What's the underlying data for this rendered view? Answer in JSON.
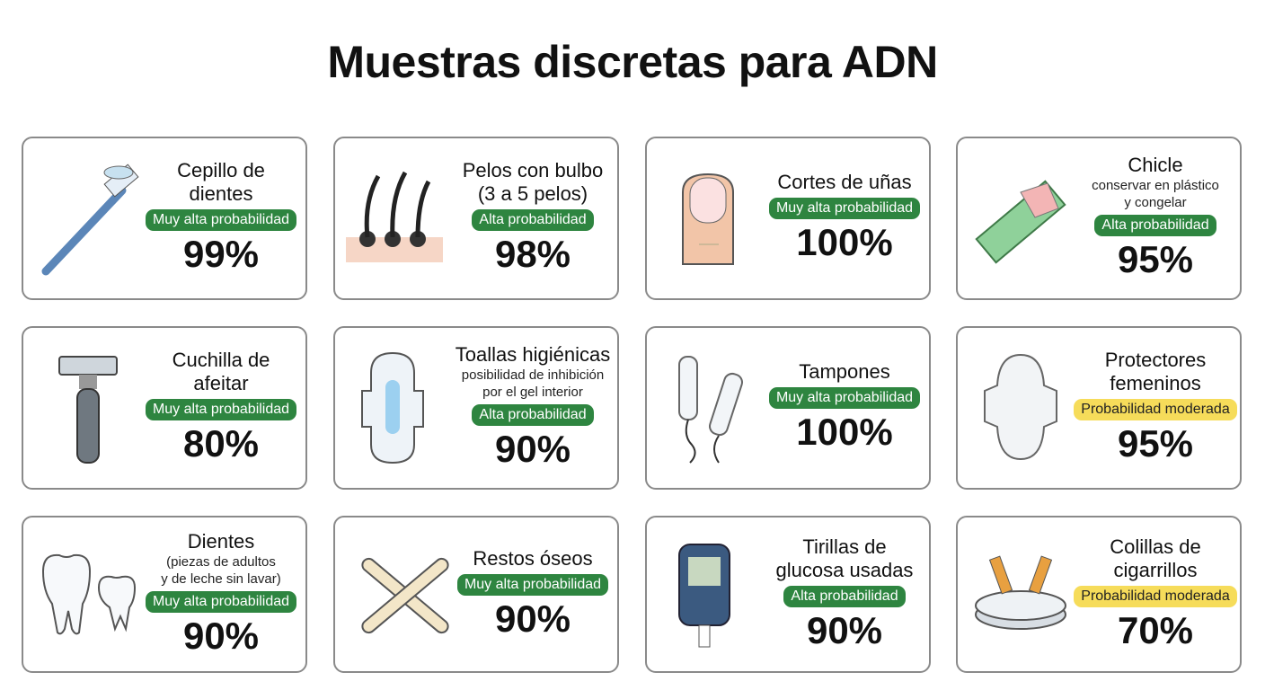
{
  "header": {
    "title": "Muestras discretas para ADN"
  },
  "cards": [
    {
      "title": "Cepillo de\ndientes",
      "badge": "Muy alta probabilidad",
      "badge_color": "#2e8540",
      "percent": "99%"
    },
    {
      "title": "Pelos con bulbo\n(3 a 5 pelos)",
      "badge": "Alta probabilidad",
      "badge_color": "#2e8540",
      "percent": "98%"
    },
    {
      "title": "Cortes de uñas",
      "badge": "Muy alta probabilidad",
      "badge_color": "#2e8540",
      "percent": "100%"
    },
    {
      "title": "Chicle",
      "note": "conservar en plástico\ny congelar",
      "badge": "Alta probabilidad",
      "badge_color": "#2e8540",
      "percent": "95%"
    },
    {
      "title": "Cuchilla de\nafeitar",
      "badge": "Muy alta probabilidad",
      "badge_color": "#2e8540",
      "percent": "80%"
    },
    {
      "title": "Toallas higiénicas",
      "note": "posibilidad de inhibición\npor el gel interior",
      "badge": "Alta probabilidad",
      "badge_color": "#2e8540",
      "percent": "90%"
    },
    {
      "title": "Tampones",
      "badge": "Muy alta probabilidad",
      "badge_color": "#2e8540",
      "percent": "100%"
    },
    {
      "title": "Protectores\nfemeninos",
      "badge": "Probabilidad moderada",
      "badge_color": "#f6dc5a",
      "percent": "95%"
    },
    {
      "title": "Dientes",
      "note": "(piezas de adultos\ny de leche sin lavar)",
      "badge": "Muy alta probabilidad",
      "badge_color": "#2e8540",
      "percent": "90%"
    },
    {
      "title": "Restos óseos",
      "badge": "Muy alta probabilidad",
      "badge_color": "#2e8540",
      "percent": "90%"
    },
    {
      "title": "Tirillas de\nglucosa usadas",
      "badge": "Alta probabilidad",
      "badge_color": "#2e8540",
      "percent": "90%"
    },
    {
      "title": "Colillas de\ncigarrillos",
      "badge": "Probabilidad moderada",
      "badge_color": "#f6dc5a",
      "percent": "70%"
    }
  ]
}
